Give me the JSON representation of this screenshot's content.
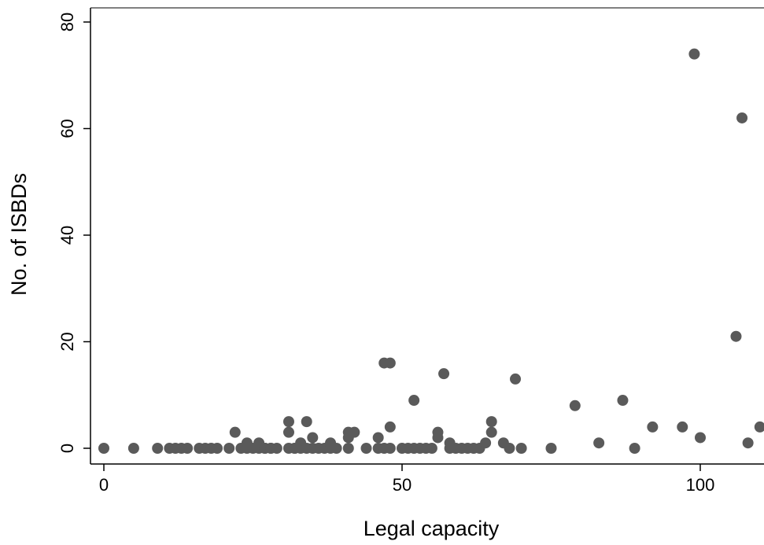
{
  "chart_data": {
    "type": "scatter",
    "title": "",
    "xlabel": "Legal capacity",
    "ylabel": "No. of ISBDs",
    "xlim": [
      -3,
      110
    ],
    "ylim": [
      -2,
      82
    ],
    "xticks": [
      0,
      50,
      100
    ],
    "yticks": [
      0,
      20,
      40,
      60,
      80
    ],
    "grid": false,
    "marker_color": "#5a5a5a",
    "series": [
      {
        "points": [
          [
            0,
            0
          ],
          [
            5,
            0
          ],
          [
            9,
            0
          ],
          [
            11,
            0
          ],
          [
            12,
            0
          ],
          [
            13,
            0
          ],
          [
            14,
            0
          ],
          [
            16,
            0
          ],
          [
            17,
            0
          ],
          [
            18,
            0
          ],
          [
            19,
            0
          ],
          [
            21,
            0
          ],
          [
            22,
            3
          ],
          [
            23,
            0
          ],
          [
            24,
            1
          ],
          [
            24,
            0
          ],
          [
            25,
            0
          ],
          [
            26,
            0
          ],
          [
            26,
            1
          ],
          [
            27,
            0
          ],
          [
            27,
            0
          ],
          [
            28,
            0
          ],
          [
            28,
            0
          ],
          [
            29,
            0
          ],
          [
            31,
            5
          ],
          [
            31,
            0
          ],
          [
            31,
            3
          ],
          [
            32,
            0
          ],
          [
            32,
            0
          ],
          [
            33,
            1
          ],
          [
            33,
            0
          ],
          [
            34,
            5
          ],
          [
            34,
            0
          ],
          [
            35,
            0
          ],
          [
            35,
            2
          ],
          [
            36,
            0
          ],
          [
            37,
            0
          ],
          [
            38,
            0
          ],
          [
            38,
            1
          ],
          [
            39,
            0
          ],
          [
            41,
            2
          ],
          [
            41,
            3
          ],
          [
            41,
            0
          ],
          [
            42,
            3
          ],
          [
            44,
            0
          ],
          [
            46,
            2
          ],
          [
            46,
            0
          ],
          [
            47,
            16
          ],
          [
            47,
            0
          ],
          [
            48,
            16
          ],
          [
            48,
            0
          ],
          [
            48,
            4
          ],
          [
            50,
            0
          ],
          [
            51,
            0
          ],
          [
            52,
            9
          ],
          [
            52,
            0
          ],
          [
            53,
            0
          ],
          [
            54,
            0
          ],
          [
            55,
            0
          ],
          [
            56,
            2
          ],
          [
            56,
            3
          ],
          [
            57,
            14
          ],
          [
            58,
            1
          ],
          [
            58,
            0
          ],
          [
            59,
            0
          ],
          [
            60,
            0
          ],
          [
            61,
            0
          ],
          [
            62,
            0
          ],
          [
            63,
            0
          ],
          [
            64,
            1
          ],
          [
            65,
            5
          ],
          [
            65,
            3
          ],
          [
            67,
            1
          ],
          [
            68,
            0
          ],
          [
            69,
            13
          ],
          [
            70,
            0
          ],
          [
            75,
            0
          ],
          [
            79,
            8
          ],
          [
            83,
            1
          ],
          [
            87,
            9
          ],
          [
            89,
            0
          ],
          [
            92,
            4
          ],
          [
            97,
            4
          ],
          [
            99,
            74
          ],
          [
            100,
            2
          ],
          [
            106,
            21
          ],
          [
            107,
            62
          ],
          [
            108,
            1
          ],
          [
            110,
            4
          ]
        ]
      }
    ]
  }
}
